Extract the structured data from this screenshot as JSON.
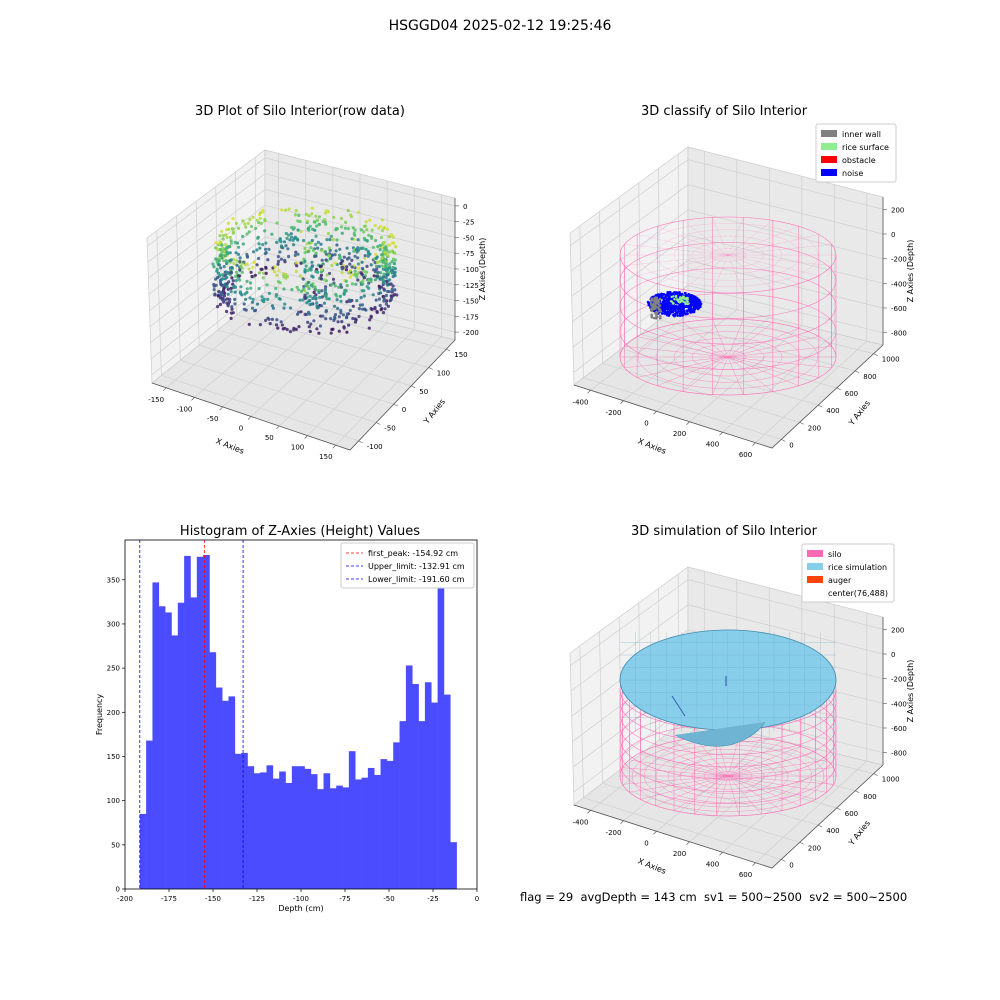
{
  "figure": {
    "suptitle": "HSGGD04 2025-02-12 19:25:46",
    "footer": "flag = 29  avgDepth = 143 cm  sv1 = 500~2500  sv2 = 500~2500"
  },
  "chart_data": [
    {
      "type": "scatter",
      "projection": "3d",
      "title": "3D Plot of Silo Interior(row data)",
      "xlabel": "X Axies",
      "ylabel": "Y Axies",
      "zlabel": "Z Axies (Depth)",
      "x_ticks": [
        "-150",
        "-100",
        "-50",
        "0",
        "50",
        "100",
        "150"
      ],
      "y_ticks": [
        "-100",
        "-50",
        "0",
        "50",
        "100",
        "150"
      ],
      "z_ticks": [
        "0",
        "-25",
        "-50",
        "-75",
        "-100",
        "-125",
        "-150",
        "-175",
        "-200"
      ],
      "xlim": [
        -170,
        170
      ],
      "ylim": [
        -120,
        170
      ],
      "zlim": [
        -210,
        0
      ],
      "colormap": "viridis"
    },
    {
      "type": "scatter",
      "projection": "3d",
      "title": "3D classify of Silo Interior",
      "xlabel": "X Axies",
      "ylabel": "Y Axies",
      "zlabel": "Z Axies (Depth)",
      "x_ticks": [
        "-400",
        "-200",
        "0",
        "200",
        "400",
        "600"
      ],
      "y_ticks": [
        "0",
        "200",
        "400",
        "600",
        "800",
        "1000"
      ],
      "z_ticks": [
        "200",
        "0",
        "-200",
        "-400",
        "-600",
        "-800"
      ],
      "legend_position": "top-right",
      "legend": [
        {
          "label": "inner wall",
          "color": "#808080"
        },
        {
          "label": "rice surface",
          "color": "#90ee90"
        },
        {
          "label": "obstacle",
          "color": "#ff0000"
        },
        {
          "label": "noise",
          "color": "#0000ff"
        }
      ],
      "wireframe_color": "#ff69b4"
    },
    {
      "type": "bar",
      "title": "Histogram of Z-Axies (Height) Values",
      "xlabel": "Depth (cm)",
      "ylabel": "Frequency",
      "xlim": [
        -200,
        0
      ],
      "ylim": [
        0,
        395
      ],
      "bin_start": -191.6,
      "bin_width": 3.6,
      "values": [
        85,
        168,
        347,
        320,
        313,
        287,
        324,
        377,
        330,
        376,
        378,
        268,
        228,
        213,
        218,
        153,
        154,
        139,
        131,
        132,
        140,
        125,
        133,
        120,
        139,
        139,
        136,
        130,
        113,
        131,
        114,
        117,
        115,
        156,
        124,
        126,
        137,
        129,
        147,
        145,
        166,
        190,
        253,
        232,
        190,
        234,
        211,
        349,
        220,
        53
      ],
      "x_ticks": [
        -200,
        -175,
        -150,
        -125,
        -100,
        -75,
        -50,
        -25,
        0
      ],
      "y_ticks": [
        0,
        50,
        100,
        150,
        200,
        250,
        300,
        350
      ],
      "bar_color": "#4c4cff",
      "legend_position": "top-right",
      "vlines": [
        {
          "label": "first_peak: -154.92 cm",
          "value": -154.92,
          "color": "#ff0000"
        },
        {
          "label": "Upper_limit: -132.91 cm",
          "value": -132.91,
          "color": "#0000ff"
        },
        {
          "label": "Lower_limit: -191.60 cm",
          "value": -191.6,
          "color": "#0000ff"
        }
      ]
    },
    {
      "type": "surface",
      "projection": "3d",
      "title": "3D simulation of Silo Interior",
      "xlabel": "X Axies",
      "ylabel": "Y Axies",
      "zlabel": "Z Axies (Depth)",
      "x_ticks": [
        "-400",
        "-200",
        "0",
        "200",
        "400",
        "600"
      ],
      "y_ticks": [
        "0",
        "200",
        "400",
        "600",
        "800",
        "1000"
      ],
      "z_ticks": [
        "200",
        "0",
        "-200",
        "-400",
        "-600",
        "-800"
      ],
      "legend_position": "top-right",
      "legend": [
        {
          "label": "silo",
          "color": "#ff69b4"
        },
        {
          "label": "rice simulation",
          "color": "#87ceeb"
        },
        {
          "label": "auger",
          "color": "#ff4500"
        },
        {
          "label": "center(76,488)",
          "color": "#ffffff"
        }
      ]
    }
  ]
}
